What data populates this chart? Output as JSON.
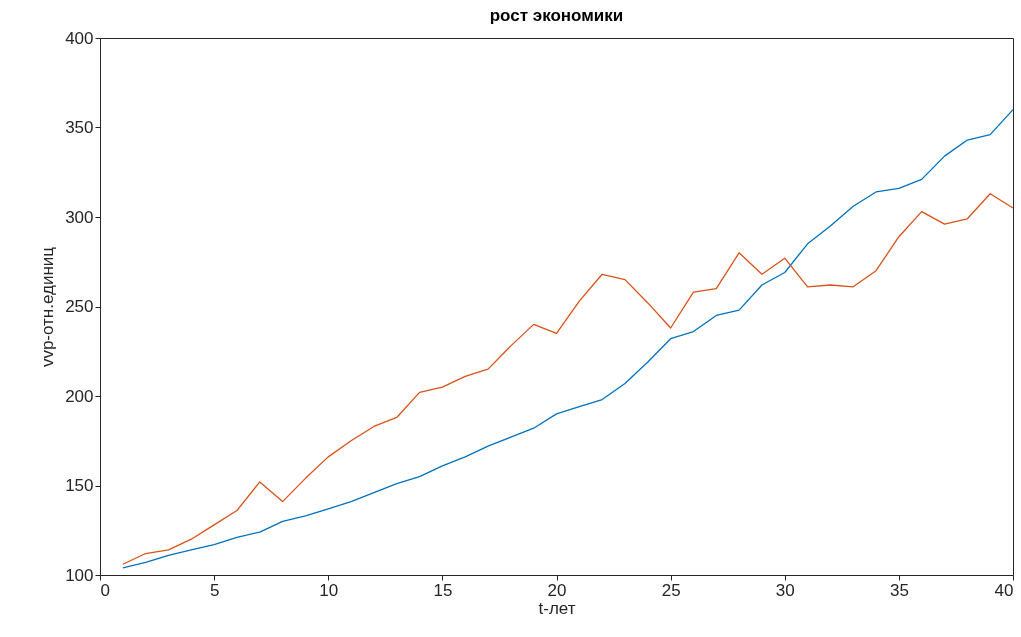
{
  "chart_data": {
    "type": "line",
    "title": "рост экономики",
    "xlabel": "t-лет",
    "ylabel": "vvp-отн.единиц",
    "x": [
      1,
      2,
      3,
      4,
      5,
      6,
      7,
      8,
      9,
      10,
      11,
      12,
      13,
      14,
      15,
      16,
      17,
      18,
      19,
      20,
      21,
      22,
      23,
      24,
      25,
      26,
      27,
      28,
      29,
      30,
      31,
      32,
      33,
      34,
      35,
      36,
      37,
      38,
      39,
      40
    ],
    "series": [
      {
        "color": "#0072bd",
        "values": [
          104,
          107,
          111,
          114,
          117,
          121,
          124,
          130,
          133,
          137,
          141,
          146,
          151,
          155,
          161,
          166,
          172,
          177,
          182,
          190,
          194,
          198,
          207,
          219,
          232,
          236,
          245,
          248,
          262,
          269,
          285,
          295,
          306,
          314,
          316,
          321,
          334,
          343,
          346,
          360
        ]
      },
      {
        "color": "#d95319",
        "values": [
          106,
          112,
          114,
          120,
          128,
          136,
          152,
          141,
          154,
          166,
          175,
          183,
          188,
          202,
          205,
          211,
          215,
          228,
          240,
          235,
          253,
          268,
          265,
          252,
          238,
          258,
          260,
          280,
          268,
          277,
          261,
          262,
          261,
          270,
          289,
          303,
          296,
          299,
          313,
          305
        ]
      }
    ],
    "xlim": [
      0,
      40
    ],
    "xticks": [
      0,
      5,
      10,
      15,
      20,
      25,
      30,
      35,
      40
    ],
    "ylim": [
      100,
      400
    ],
    "yticks": [
      100,
      150,
      200,
      250,
      300,
      350,
      400
    ],
    "grid": false,
    "legend": false,
    "line_style": "solid",
    "marker": "none"
  }
}
